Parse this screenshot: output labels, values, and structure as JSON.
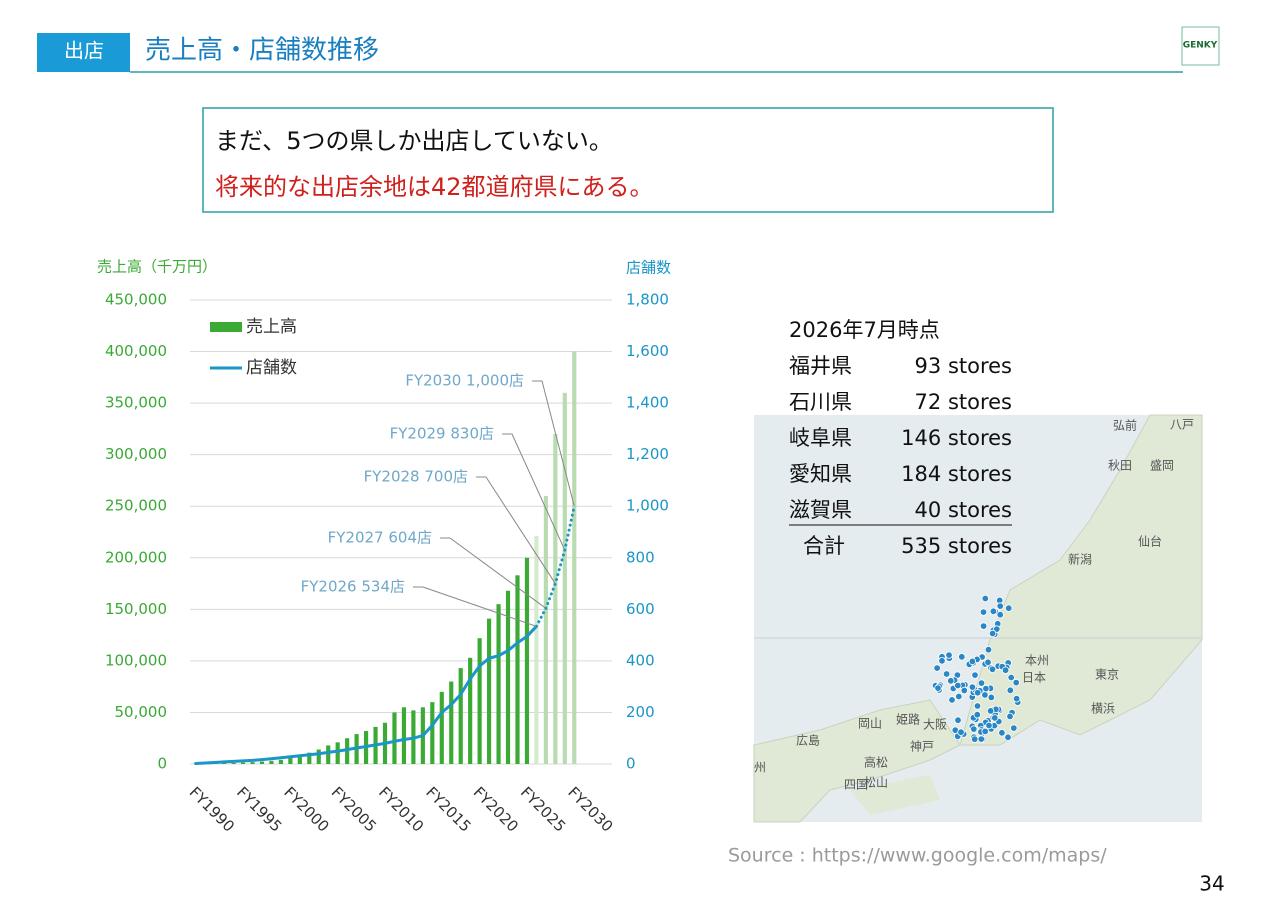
{
  "header": {
    "tag": "出店",
    "title": "売上高・店舗数推移",
    "logo": "GENKY"
  },
  "callout": {
    "line1": "まだ、5つの県しか出店していない。",
    "line2": "将来的な出店余地は42都道府県にある。"
  },
  "chart_data": {
    "type": "bar",
    "y_title": "売上高（千万円）",
    "y2_title": "店舗数",
    "categories": [
      "FY1990",
      null,
      null,
      null,
      null,
      "FY1995",
      null,
      null,
      null,
      null,
      "FY2000",
      null,
      null,
      null,
      null,
      "FY2005",
      null,
      null,
      null,
      null,
      "FY2010",
      null,
      null,
      null,
      null,
      "FY2015",
      null,
      null,
      null,
      null,
      "FY2020",
      null,
      null,
      null,
      null,
      "FY2025",
      null,
      null,
      null,
      null,
      "FY2030"
    ],
    "series": [
      {
        "name": "売上高",
        "type": "bar",
        "color": "#3aaa35",
        "colors": [
          "#3aaa35",
          "#3aaa35",
          "#3aaa35",
          "#3aaa35",
          "#3aaa35",
          "#3aaa35",
          "#3aaa35",
          "#3aaa35",
          "#3aaa35",
          "#3aaa35",
          "#3aaa35",
          "#3aaa35",
          "#3aaa35",
          "#3aaa35",
          "#3aaa35",
          "#3aaa35",
          "#3aaa35",
          "#3aaa35",
          "#3aaa35",
          "#3aaa35",
          "#3aaa35",
          "#3aaa35",
          "#3aaa35",
          "#3aaa35",
          "#3aaa35",
          "#3aaa35",
          "#3aaa35",
          "#3aaa35",
          "#3aaa35",
          "#3aaa35",
          "#3aaa35",
          "#3aaa35",
          "#3aaa35",
          "#3aaa35",
          "#3aaa35",
          "#3aaa35",
          "#d3ebcd",
          "#b8dcb0",
          "#b8dcb0",
          "#b8dcb0",
          "#b8dcb0"
        ],
        "values": [
          300,
          500,
          700,
          900,
          1100,
          1400,
          1800,
          2300,
          3000,
          4000,
          6000,
          8000,
          11000,
          14000,
          18000,
          21000,
          25000,
          29000,
          32000,
          36000,
          40000,
          50000,
          55000,
          52000,
          55000,
          60000,
          70000,
          80000,
          93000,
          103000,
          122000,
          141000,
          155000,
          168000,
          183000,
          200000,
          221000,
          260000,
          320000,
          360000,
          400000
        ]
      },
      {
        "name": "店舗数",
        "type": "line",
        "axis": "y2",
        "color": "#1a96c8",
        "values": [
          2,
          4,
          6,
          8,
          10,
          12,
          14,
          17,
          20,
          24,
          28,
          32,
          36,
          40,
          45,
          50,
          56,
          62,
          68,
          74,
          80,
          88,
          95,
          100,
          110,
          150,
          200,
          230,
          270,
          330,
          380,
          410,
          420,
          440,
          470,
          495,
          534,
          null,
          null,
          null,
          null
        ]
      },
      {
        "type": "line",
        "axis": "y2",
        "style": "dotted",
        "color": "#1a96c8",
        "values": [
          null,
          null,
          null,
          null,
          null,
          null,
          null,
          null,
          null,
          null,
          null,
          null,
          null,
          null,
          null,
          null,
          null,
          null,
          null,
          null,
          null,
          null,
          null,
          null,
          null,
          null,
          null,
          null,
          null,
          null,
          null,
          null,
          null,
          null,
          null,
          null,
          null,
          604,
          700,
          830,
          1000
        ]
      }
    ],
    "ylim": [
      0,
      450000
    ],
    "yticks": [
      0,
      {
        "value": 50000,
        "label": "50,000"
      },
      {
        "value": 100000,
        "label": "100,000"
      },
      {
        "value": 150000,
        "label": "150,000"
      },
      {
        "value": 200000,
        "label": "200,000"
      },
      {
        "value": 250000,
        "label": "250,000"
      },
      {
        "value": 300000,
        "label": "300,000"
      },
      {
        "value": 350000,
        "label": "350,000"
      },
      {
        "value": 400000,
        "label": "400,000"
      },
      {
        "value": 450000,
        "label": "450,000"
      }
    ],
    "y2lim": [
      0,
      1800
    ],
    "y2ticks": [
      0,
      200,
      400,
      600,
      800,
      {
        "value": 1000,
        "label": "1,000"
      },
      {
        "value": 1200,
        "label": "1,200"
      },
      {
        "value": 1400,
        "label": "1,400"
      },
      {
        "value": 1600,
        "label": "1,600"
      },
      {
        "value": 1800,
        "label": "1,800"
      }
    ],
    "grid": true,
    "legend": "upper left",
    "annotations": [
      "FY2026 534店",
      "FY2027 604店",
      "FY2028 700店",
      "FY2029 830店",
      "FY2030 1,000店"
    ]
  },
  "store_table": {
    "title": "2026年7月時点",
    "rows": [
      [
        "福井県",
        "93 stores"
      ],
      [
        "石川県",
        "72 stores"
      ],
      [
        "岐阜県",
        "146 stores"
      ],
      [
        "愛知県",
        "184 stores"
      ],
      [
        "滋賀県",
        "40 stores"
      ]
    ],
    "total": [
      "合計",
      "535 stores"
    ]
  },
  "map_labels": [
    "弘前",
    "八戸",
    "秋田",
    "盛岡",
    "新潟",
    "仙台",
    "本州",
    "日本",
    "東京",
    "横浜",
    "大阪",
    "神戸",
    "姫路",
    "岡山",
    "広島",
    "高松",
    "松山",
    "四国",
    "州"
  ],
  "source": "Source : https://www.google.com/maps/",
  "page": "34"
}
